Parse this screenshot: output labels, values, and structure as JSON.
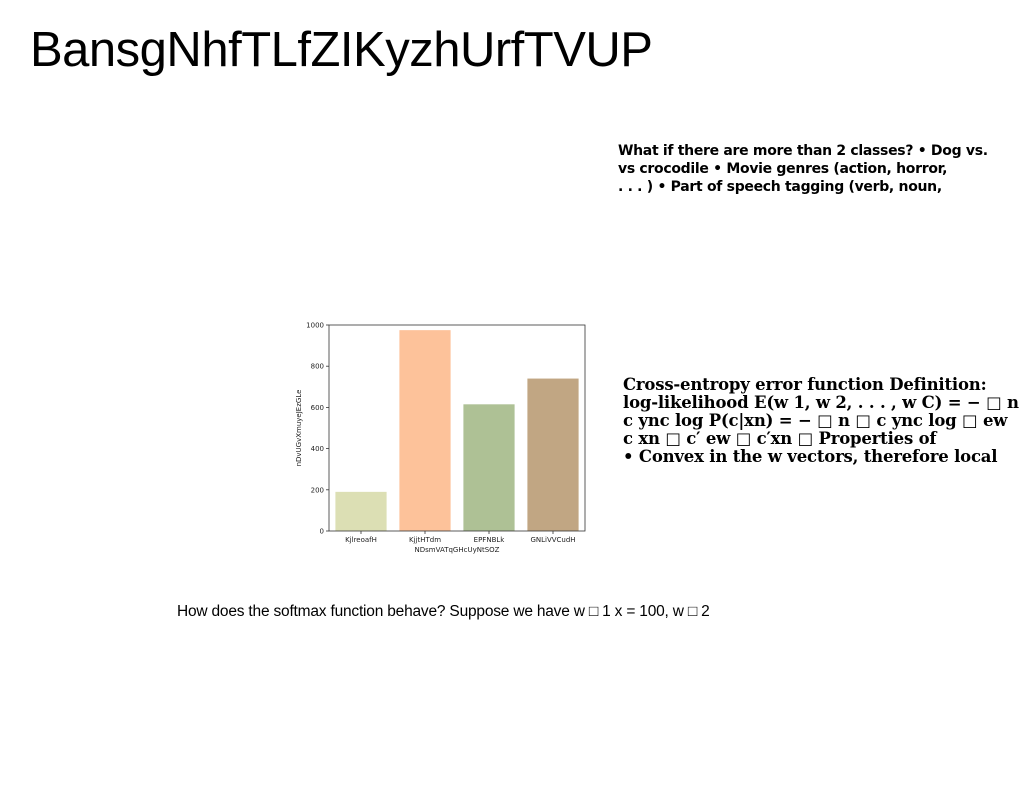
{
  "title": "BansgNhfTLfZIKyzhUrfTVUP",
  "block1": {
    "lines": [
      "What if there are more than 2 classes? • Dog vs.",
      "vs crocodile • Movie genres (action, horror,",
      ". . . ) • Part of speech tagging (verb, noun,"
    ]
  },
  "block2": {
    "lines": [
      "Cross-entropy error function Definition:",
      "log-likelihood E(w 1, w 2, . . . , w C) = − □ n",
      "c ync log P(c|xn) = − □ n □ c ync log □ ew",
      "c xn □ c′ ew □ c′xn □ Properties of",
      "• Convex in the w vectors, therefore local"
    ]
  },
  "caption": "How does the softmax function behave? Suppose we have w □ 1 x = 100, w □ 2",
  "chart_data": {
    "type": "bar",
    "categories": [
      "KjlreoafH",
      "KjjtHTdm",
      "EPFNBLk",
      "GNLiVVCudH"
    ],
    "values": [
      190,
      975,
      615,
      740
    ],
    "colors": [
      "#dcdfb4",
      "#fdc29a",
      "#aec195",
      "#c1a683"
    ],
    "xlabel": "NDsmVATqGHcUyNtSOZ",
    "ylabel": "nDvUGvXmuyeJEzGLe",
    "ylim": [
      0,
      1000
    ],
    "yticks": [
      0,
      200,
      400,
      600,
      800,
      1000
    ],
    "grid": false,
    "legend": "none"
  }
}
